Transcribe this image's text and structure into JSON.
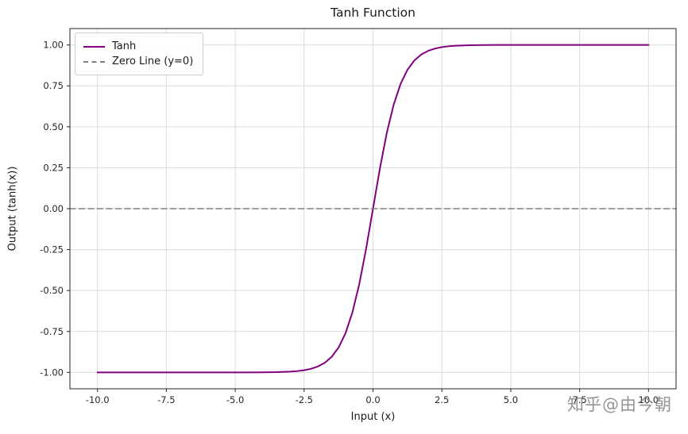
{
  "watermark": "知乎@由今朝",
  "chart_data": {
    "type": "line",
    "title": "Tanh Function",
    "xlabel": "Input (x)",
    "ylabel": "Output (tanh(x))",
    "xlim": [
      -11,
      11
    ],
    "ylim": [
      -1.1,
      1.1
    ],
    "grid": true,
    "legend_position": "upper left",
    "x_ticks": [
      -10.0,
      -7.5,
      -5.0,
      -2.5,
      0.0,
      2.5,
      5.0,
      7.5,
      10.0
    ],
    "x_tick_labels": [
      "-10.0",
      "-7.5",
      "-5.0",
      "-2.5",
      "0.0",
      "2.5",
      "5.0",
      "7.5",
      "10.0"
    ],
    "y_ticks": [
      -1.0,
      -0.75,
      -0.5,
      -0.25,
      0.0,
      0.25,
      0.5,
      0.75,
      1.0
    ],
    "y_tick_labels": [
      "-1.00",
      "-0.75",
      "-0.50",
      "-0.25",
      "0.00",
      "0.25",
      "0.50",
      "0.75",
      "1.00"
    ],
    "series": [
      {
        "name": "Tanh",
        "color": "#800080",
        "style": "solid",
        "width": 2,
        "x": [
          -10,
          -9,
          -8,
          -7,
          -6,
          -5,
          -4.5,
          -4,
          -3.5,
          -3,
          -2.75,
          -2.5,
          -2.25,
          -2,
          -1.75,
          -1.5,
          -1.25,
          -1,
          -0.75,
          -0.5,
          -0.25,
          0,
          0.25,
          0.5,
          0.75,
          1,
          1.25,
          1.5,
          1.75,
          2,
          2.25,
          2.5,
          2.75,
          3,
          3.5,
          4,
          4.5,
          5,
          6,
          7,
          8,
          9,
          10
        ],
        "y": [
          -1.0,
          -1.0,
          -1.0,
          -1.0,
          -1.0,
          -0.9999,
          -0.9998,
          -0.9993,
          -0.9982,
          -0.9951,
          -0.9919,
          -0.9866,
          -0.978,
          -0.964,
          -0.9414,
          -0.9051,
          -0.8483,
          -0.7616,
          -0.6351,
          -0.4621,
          -0.2449,
          0.0,
          0.2449,
          0.4621,
          0.6351,
          0.7616,
          0.8483,
          0.9051,
          0.9414,
          0.964,
          0.978,
          0.9866,
          0.9919,
          0.9951,
          0.9982,
          0.9993,
          0.9998,
          0.9999,
          1.0,
          1.0,
          1.0,
          1.0,
          1.0
        ]
      },
      {
        "name": "Zero Line (y=0)",
        "color": "#7f7f7f",
        "style": "dashed",
        "width": 1.6,
        "x": [
          -11,
          11
        ],
        "y": [
          0,
          0
        ]
      }
    ]
  }
}
